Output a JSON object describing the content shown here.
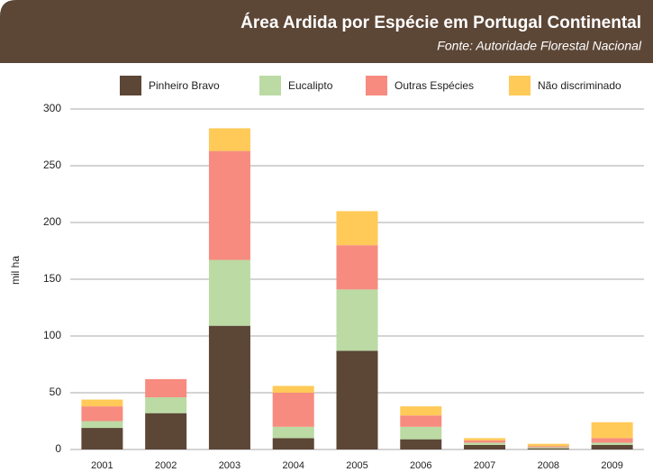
{
  "chart_data": {
    "type": "stacked-bar",
    "title": "Área Ardida por Espécie em Portugal Continental",
    "subtitle": "Fonte: Autoridade Florestal Nacional",
    "y_label": "mil ha",
    "categories": [
      "2001",
      "2002",
      "2003",
      "2004",
      "2005",
      "2006",
      "2007",
      "2008",
      "2009"
    ],
    "series": [
      {
        "name": "Pinheiro Bravo",
        "color": "#5c4636",
        "values": [
          19,
          32,
          109,
          10,
          87,
          9,
          4,
          1,
          4
        ]
      },
      {
        "name": "Eucalipto",
        "color": "#bbdaa4",
        "values": [
          6,
          14,
          58,
          10,
          54,
          11,
          2,
          1,
          2
        ]
      },
      {
        "name": "Outras Espécies",
        "color": "#f78b7f",
        "values": [
          13,
          16,
          96,
          30,
          39,
          10,
          2,
          1,
          4
        ]
      },
      {
        "name": "Não discriminado",
        "color": "#ffca58",
        "values": [
          6,
          0,
          20,
          6,
          30,
          8,
          2,
          2,
          14
        ]
      }
    ],
    "ylim": [
      0,
      300
    ],
    "yticks": [
      0,
      50,
      100,
      150,
      200,
      250,
      300
    ],
    "grid": true
  }
}
